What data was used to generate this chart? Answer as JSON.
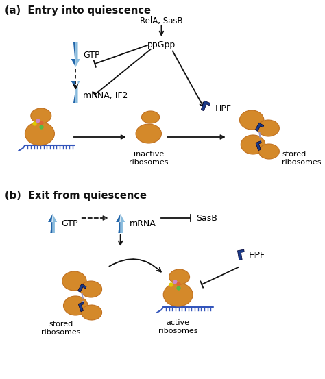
{
  "bg_color": "#ffffff",
  "ribosome_color": "#d4892a",
  "ribosome_edge": "#c07020",
  "arrow_blue_dark": "#2266aa",
  "arrow_blue_light": "#88bbdd",
  "arrow_dark": "#111111",
  "hpf_color": "#1a3a88",
  "text_color": "#111111",
  "title_a": "(a)  Entry into quiescence",
  "title_b": "(b)  Exit from quiescence",
  "label_rela_sasb": "RelA, SasB",
  "label_ppgpp": "ppGpp",
  "label_gtp_a": "GTP",
  "label_mrna_if2": "mRNA, IF2",
  "label_hpf_a": "HPF",
  "label_inactive": "inactive\nribosomes",
  "label_stored_a": "stored\nribosomes",
  "label_mrna_b": "mRNA",
  "label_gtp_b": "GTP",
  "label_sasb_b": "SasB",
  "label_hpf_b": "HPF",
  "label_stored_b": "stored\nribosomes",
  "label_active": "active\nribosomes"
}
